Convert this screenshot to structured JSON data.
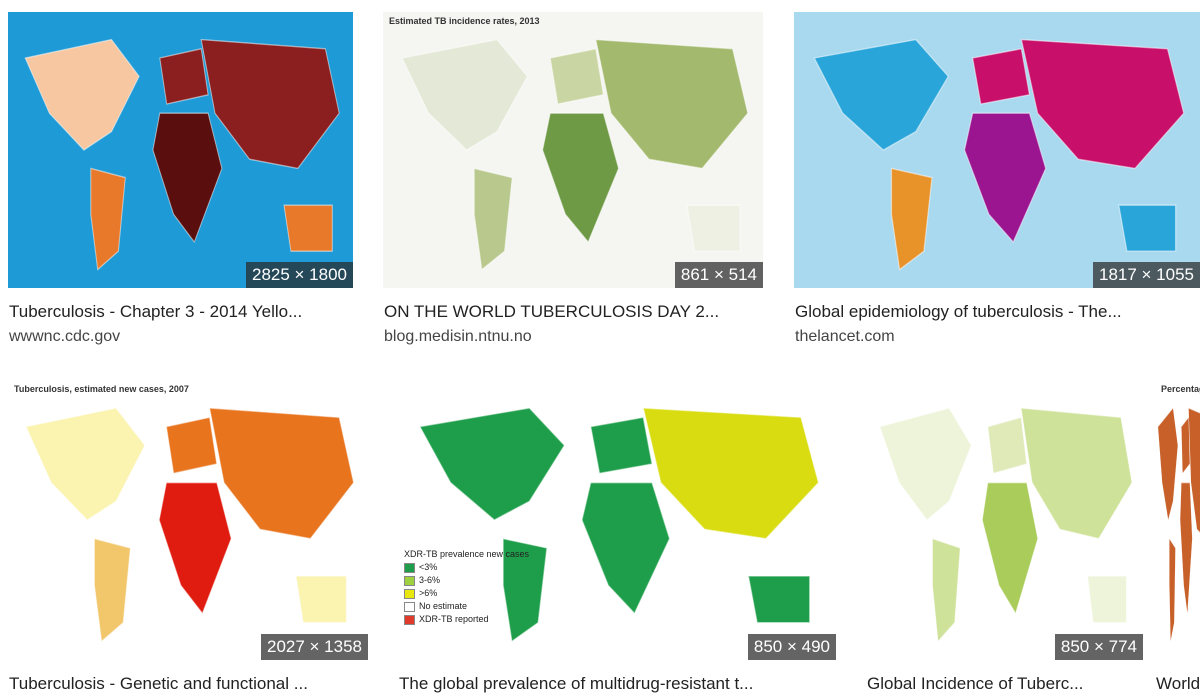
{
  "results": [
    {
      "title": "Tuberculosis - Chapter 3 - 2014 Yello...",
      "source": "wwwnc.cdc.gov",
      "size": "2825 × 1800"
    },
    {
      "title": "ON THE WORLD TUBERCULOSIS DAY 2...",
      "source": "blog.medisin.ntnu.no",
      "size": "861 × 514",
      "map_title": "Estimated TB incidence rates, 2013"
    },
    {
      "title": "Global epidemiology of tuberculosis - The...",
      "source": "thelancet.com",
      "size": "1817 × 1055"
    },
    {
      "title": "Tuberculosis - Genetic and functional ...",
      "size": "2027 × 1358",
      "map_title": "Tuberculosis, estimated new cases, 2007"
    },
    {
      "title": "The global prevalence of multidrug-resistant t...",
      "size": "850 × 490",
      "legend_title": "XDR-TB prevalence new cases",
      "legend": [
        "<3%",
        "3-6%",
        ">6%",
        "No estimate",
        "XDR-TB reported"
      ]
    },
    {
      "title": "Global Incidence of Tuberc...",
      "size": "850 × 774"
    },
    {
      "title": "World",
      "map_title": "Percentage"
    }
  ]
}
